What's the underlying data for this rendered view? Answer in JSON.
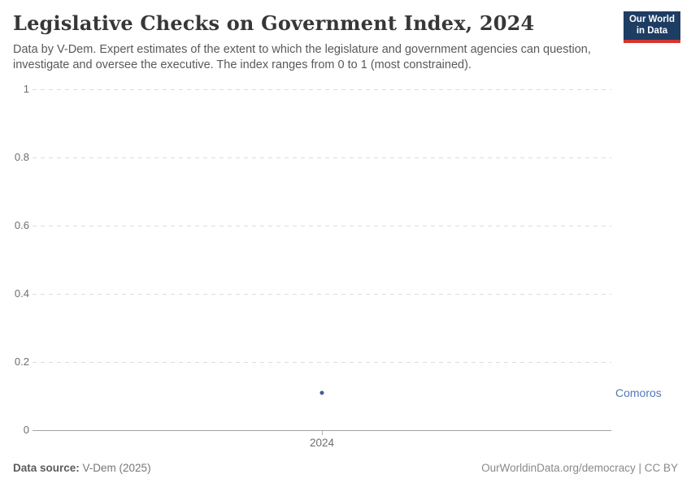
{
  "header": {
    "title": "Legislative Checks on Government Index, 2024",
    "subtitle": "Data by V-Dem. Expert estimates of the extent to which the legislature and government agencies can question, investigate and oversee the executive. The index ranges from 0 to 1 (most constrained).",
    "logo": {
      "line1": "Our World",
      "line2": "in Data"
    }
  },
  "chart_data": {
    "type": "scatter",
    "title": "Legislative Checks on Government Index, 2024",
    "x": [
      2024
    ],
    "xticks": [
      2024
    ],
    "yticks": [
      0,
      0.2,
      0.4,
      0.6,
      0.8,
      1
    ],
    "ylim": [
      0,
      1
    ],
    "xlabel": "",
    "ylabel": "",
    "grid": "horizontal-dashed",
    "series": [
      {
        "name": "Comoros",
        "values": [
          0.11
        ],
        "color": "#3e5e96",
        "label_color": "#5378b5"
      }
    ],
    "legend_position": "right-edge-entity-label"
  },
  "footer": {
    "source_label": "Data source:",
    "source_value": " V-Dem (2025)",
    "credit": "OurWorldinData.org/democracy | CC BY"
  },
  "colors": {
    "grid": "#dcdcdc",
    "axis_baseline": "#a3a3a3",
    "tick_text": "#6e6e6e",
    "logo_bg": "#1d3d63",
    "logo_stripe": "#d5352f",
    "point": "#3e5e96",
    "entity_label": "#5378b5"
  }
}
